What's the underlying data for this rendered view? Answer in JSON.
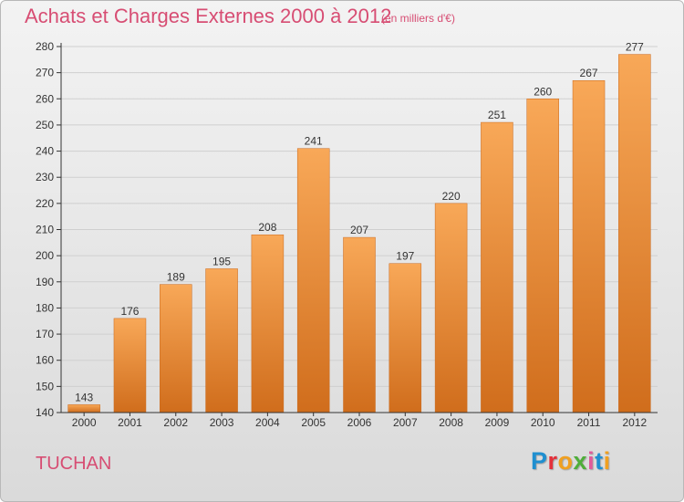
{
  "chart_data": {
    "type": "bar",
    "title": "Achats et Charges Externes 2000 à 2012",
    "subtitle": "(en milliers d'€)",
    "categories": [
      "2000",
      "2001",
      "2002",
      "2003",
      "2004",
      "2005",
      "2006",
      "2007",
      "2008",
      "2009",
      "2010",
      "2011",
      "2012"
    ],
    "values": [
      143,
      176,
      189,
      195,
      208,
      241,
      207,
      197,
      220,
      251,
      260,
      267,
      277
    ],
    "ylim": [
      140,
      280
    ],
    "yticks": [
      140,
      150,
      160,
      170,
      180,
      190,
      200,
      210,
      220,
      230,
      240,
      250,
      260,
      270,
      280
    ],
    "grid": true,
    "legend": "none",
    "data_labels": true,
    "bar_color": "#f0913b",
    "bar_color_light": "#f8a858",
    "bar_color_dark": "#d06d1c"
  },
  "footer": {
    "commune": "TUCHAN",
    "brand": "Proxiti",
    "brand_colors": [
      "#1f8fd0",
      "#e4303a",
      "#f0a020",
      "#4fae3a",
      "#e05a9a",
      "#1f8fd0",
      "#f0a020"
    ]
  },
  "colors": {
    "accent": "#d74d73",
    "axis": "#333333",
    "grid": "#cfcfcf"
  }
}
